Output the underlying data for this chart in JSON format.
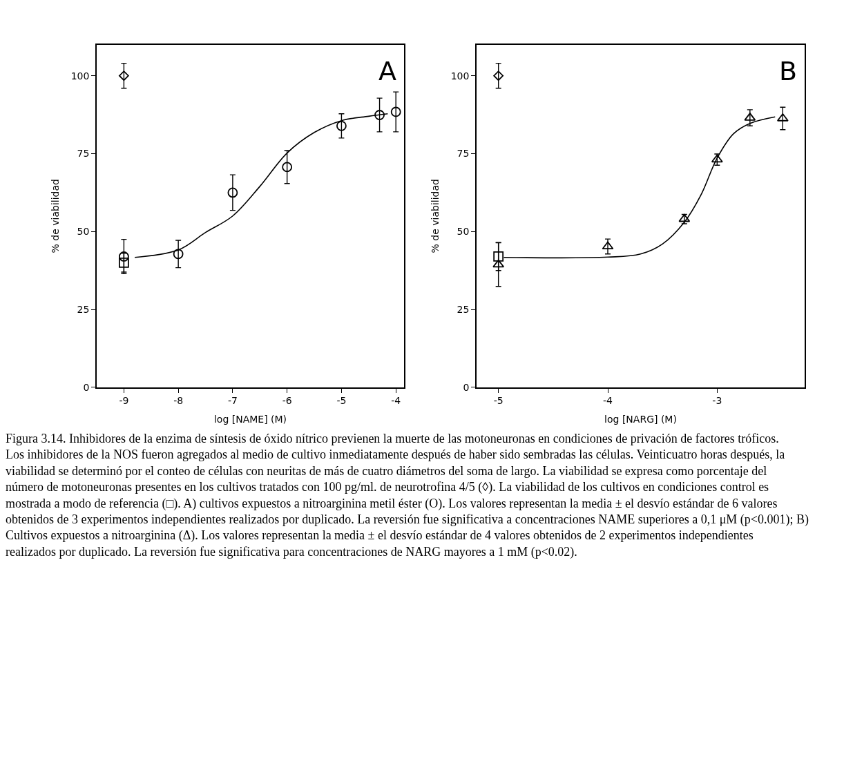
{
  "chart_data": [
    {
      "type": "scatter",
      "xlabel": "log [NAME] (M)",
      "ylabel": "% de viabilidad",
      "xlim": [
        -9.5,
        -3.85
      ],
      "ylim": [
        0,
        110
      ],
      "xticks": [
        -9,
        -8,
        -7,
        -6,
        -5,
        -4
      ],
      "yticks": [
        0,
        25,
        50,
        75,
        100
      ],
      "grid": false,
      "annotations": [
        "A",
        "Figura 3.14. Inhibidores de la enzima de síntesis de óxido nítrico previenen la muerte de las motoneuronas en condiciones de privación de factores tróficos. Los inhibidores de la NOS fueron agregados al medio de cultivo inmediatamente después de haber sido sembradas las células. Veinticuatro horas después, la viabilidad se determinó por el conteo de células con neuritas de más de cuatro diámetros del soma de largo. La viabilidad se expresa como porcentaje del número de motoneuronas presentes en los cultivos tratados con 100 pg/ml. de neurotrofina 4/5 (◊). La viabilidad de los cultivos en condiciones control es mostrada a modo de referencia (□). A) cultivos expuestos a nitroarginina metil éster (O). Los valores representan la media ± el desvío estándar de 6 valores obtenidos de 3 experimentos independientes realizados por duplicado. La reversión fue significativa a concentraciones NAME superiores a 0,1 μM (p<0.001); B) Cultivos expuestos a nitroarginina (Δ). Los valores representan la media ± el desvío estándar de 4 valores obtenidos de 2 experimentos independientes realizados por duplicado. La reversión fue significativa para concentraciones de NARG mayores a 1 mM (p<0.02)."
      ],
      "series": [
        {
          "type": "line",
          "color": "#000000",
          "marker": "none",
          "line_style": "solid",
          "x": [
            -8.8,
            -8.0,
            -7.5,
            -7.0,
            -6.5,
            -6.0,
            -5.5,
            -5.0,
            -4.5,
            -4.15
          ],
          "values": [
            41.7,
            44.1,
            49.7,
            55.0,
            64.5,
            75.2,
            81.8,
            85.6,
            87.0,
            87.8
          ]
        },
        {
          "color": "#000000",
          "marker": "diamond",
          "x": [
            -9
          ],
          "values": [
            100
          ],
          "errors": [
            4
          ]
        },
        {
          "color": "#000000",
          "marker": "square",
          "x": [
            -9
          ],
          "values": [
            40
          ],
          "errors": [
            3
          ]
        },
        {
          "color": "#000000",
          "marker": "circle",
          "x": [
            -9,
            -8,
            -7,
            -6,
            -5,
            -4.3,
            -4
          ],
          "values": [
            42,
            42.8,
            62.5,
            70.7,
            83.9,
            87.4,
            88.4
          ],
          "errors": [
            5.5,
            4.4,
            5.7,
            5.3,
            3.9,
            5.4,
            6.4
          ]
        }
      ]
    },
    {
      "type": "scatter",
      "xlabel": "log [NARG] (M)",
      "ylabel": "% de viabilidad",
      "xlim": [
        -5.2,
        -2.2
      ],
      "ylim": [
        0,
        110
      ],
      "xticks": [
        -5,
        -4,
        -3
      ],
      "yticks": [
        0,
        25,
        50,
        75,
        100
      ],
      "grid": false,
      "annotations": [
        "B"
      ],
      "series": [
        {
          "type": "line",
          "color": "#000000",
          "marker": "none",
          "line_style": "solid",
          "x": [
            -4.95,
            -4,
            -3.7,
            -3.5,
            -3.3,
            -3.15,
            -3,
            -2.85,
            -2.7,
            -2.47
          ],
          "values": [
            41.7,
            41.8,
            42.8,
            46,
            53,
            61.6,
            73.6,
            81.4,
            84.7,
            86.8
          ]
        },
        {
          "color": "#000000",
          "marker": "diamond",
          "x": [
            -5
          ],
          "values": [
            100
          ],
          "errors": [
            4
          ]
        },
        {
          "color": "#000000",
          "marker": "square",
          "x": [
            -5
          ],
          "values": [
            42
          ],
          "errors": [
            4.5
          ]
        },
        {
          "color": "#000000",
          "marker": "triangle",
          "x": [
            -5,
            -4,
            -3.3,
            -3,
            -2.7,
            -2.4
          ],
          "values": [
            39.4,
            45.2,
            54,
            73.1,
            86.5,
            86.3
          ],
          "errors": [
            7,
            2.4,
            1.5,
            1.8,
            2.6,
            3.6
          ]
        }
      ]
    }
  ]
}
